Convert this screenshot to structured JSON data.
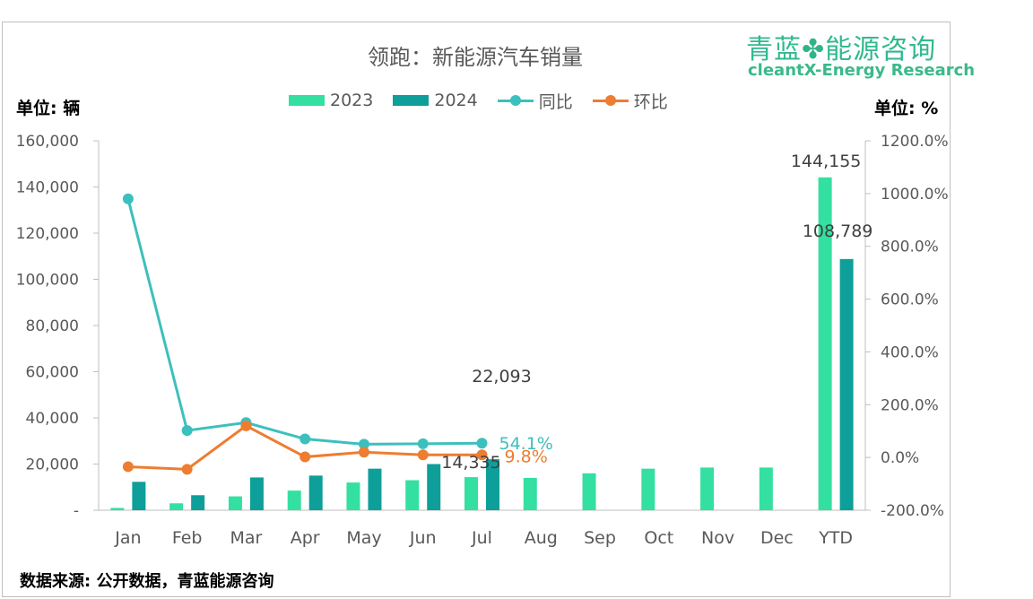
{
  "header": {
    "title": "领跑：新能源汽车销量",
    "logo_cn_a": "青蓝",
    "logo_cn_b": "能源咨询",
    "logo_en": "cleantX-Energy Research",
    "unit_left": "单位: 辆",
    "unit_right": "单位: %"
  },
  "footer": {
    "source": "数据来源: 公开数据，青蓝能源咨询"
  },
  "colors": {
    "s2023": "#33e0a1",
    "s2024": "#0e9f9a",
    "yoy": "#3cc0bd",
    "mom": "#ed7d31",
    "axis_text": "#595959"
  },
  "icons": {
    "logo_mark": "clover-icon"
  },
  "chart_data": {
    "type": "bar",
    "title": "领跑：新能源汽车销量",
    "categories": [
      "Jan",
      "Feb",
      "Mar",
      "Apr",
      "May",
      "Jun",
      "Jul",
      "Aug",
      "Sep",
      "Oct",
      "Nov",
      "Dec",
      "YTD"
    ],
    "series": [
      {
        "name": "2023",
        "type": "bar",
        "axis": "left",
        "values": [
          1000,
          3000,
          6000,
          8500,
          12000,
          13000,
          14335,
          14000,
          16000,
          18000,
          18500,
          18500,
          144155
        ]
      },
      {
        "name": "2024",
        "type": "bar",
        "axis": "left",
        "values": [
          12300,
          6500,
          14200,
          15000,
          18000,
          20000,
          22093,
          null,
          null,
          null,
          null,
          null,
          108789
        ]
      },
      {
        "name": "同比",
        "type": "line",
        "axis": "right",
        "values": [
          980,
          102,
          132,
          70,
          50,
          52,
          54.1,
          null,
          null,
          null,
          null,
          null,
          null
        ]
      },
      {
        "name": "环比",
        "type": "line",
        "axis": "right",
        "values": [
          -35,
          -45,
          120,
          2,
          20,
          10,
          9.8,
          null,
          null,
          null,
          null,
          null,
          null
        ]
      }
    ],
    "y_left": {
      "min": 0,
      "max": 160000,
      "ticks": [
        "-",
        "20,000",
        "40,000",
        "60,000",
        "80,000",
        "100,000",
        "120,000",
        "140,000",
        "160,000"
      ]
    },
    "y_right": {
      "min": -200,
      "max": 1200,
      "ticks": [
        "-200.0%",
        "0.0%",
        "200.0%",
        "400.0%",
        "600.0%",
        "800.0%",
        "1000.0%",
        "1200.0%"
      ]
    },
    "data_labels": [
      {
        "text": "144,155",
        "series": "2023",
        "category": "YTD"
      },
      {
        "text": "108,789",
        "series": "2024",
        "category": "YTD"
      },
      {
        "text": "22,093",
        "series": "2024",
        "category": "Jul"
      },
      {
        "text": "14,335",
        "series": "2023",
        "category": "Jul"
      },
      {
        "text": "54.1%",
        "series": "同比",
        "category": "Jul"
      },
      {
        "text": "9.8%",
        "series": "环比",
        "category": "Jul"
      }
    ],
    "legend": {
      "position": "top",
      "entries": [
        "2023",
        "2024",
        "同比",
        "环比"
      ]
    },
    "grid": false
  }
}
